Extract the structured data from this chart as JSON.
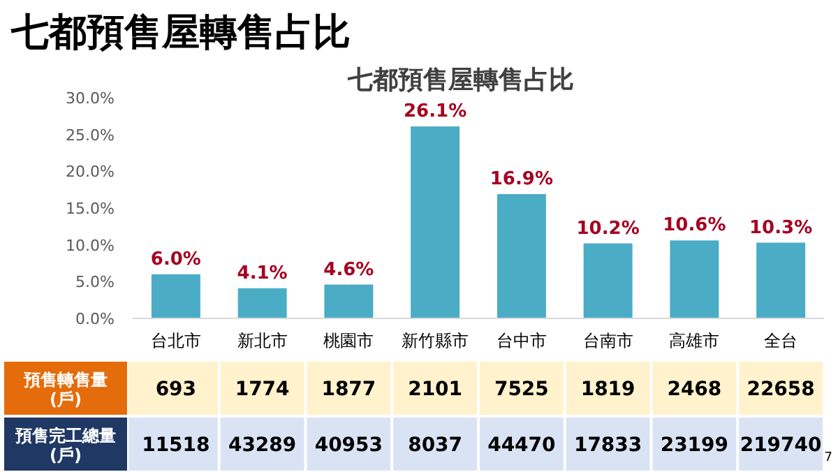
{
  "chart_data": [
    {
      "type": "bar",
      "title": "七都預售屋轉售占比",
      "subtitle": "七都預售屋轉售占比",
      "categories": [
        "台北市",
        "新北市",
        "桃園市",
        "新竹縣市",
        "台中市",
        "台南市",
        "高雄市",
        "全台"
      ],
      "values": [
        6.0,
        4.1,
        4.6,
        26.1,
        16.9,
        10.2,
        10.6,
        10.3
      ],
      "value_labels": [
        "6.0%",
        "4.1%",
        "4.6%",
        "26.1%",
        "16.9%",
        "10.2%",
        "10.6%",
        "10.3%"
      ],
      "color": "#4bacc6",
      "ylim": [
        0,
        30
      ],
      "yticks": [
        {
          "value": 0,
          "label": "0.0%"
        },
        {
          "value": 5,
          "label": "5.0%"
        },
        {
          "value": 10,
          "label": "10.0%"
        },
        {
          "value": 15,
          "label": "15.0%"
        },
        {
          "value": 20,
          "label": "20.0%"
        },
        {
          "value": 25,
          "label": "25.0%"
        },
        {
          "value": 30,
          "label": "30.0%"
        }
      ],
      "grid": false,
      "annotations": [
        "7"
      ]
    },
    {
      "type": "heatmap",
      "categories": [
        null,
        null,
        null,
        null,
        null,
        null,
        null,
        null
      ],
      "y_categories": [
        "預售轉售量\n(戶)",
        "預售完工總量\n(戶)"
      ],
      "cells": [
        [
          693,
          1774,
          1877,
          2101,
          7525,
          1819,
          2468,
          22658
        ],
        [
          11518,
          43289,
          40953,
          8037,
          44470,
          17833,
          23199,
          219740
        ]
      ],
      "data_labels": true,
      "colors": [
        "#fff2cc",
        "#dae3f3"
      ]
    }
  ]
}
